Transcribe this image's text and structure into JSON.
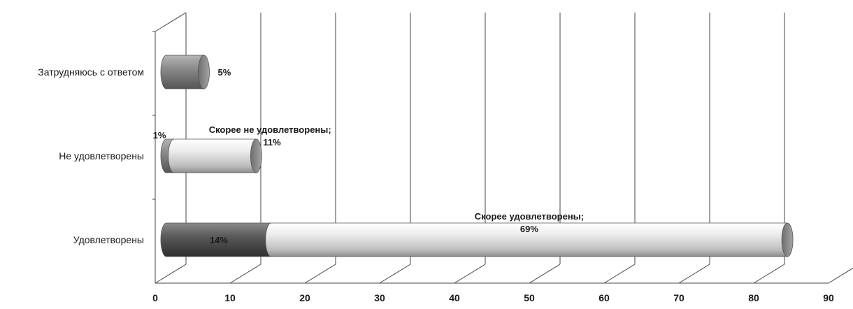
{
  "chart_data": {
    "type": "bar",
    "orientation": "horizontal",
    "stacked": true,
    "style": "3d-cylinder",
    "xlim": [
      0,
      90
    ],
    "x_ticks": [
      "0",
      "10",
      "20",
      "30",
      "40",
      "50",
      "60",
      "70",
      "80",
      "90"
    ],
    "grid": true,
    "categories": [
      "Удовлетворены",
      "Не удовлетворены",
      "Затрудняюсь с ответом"
    ],
    "series": [
      {
        "color": "#5a5a5a",
        "values": [
          14,
          1,
          5
        ]
      },
      {
        "color": "#dcdcdc",
        "values": [
          69,
          11,
          null
        ]
      }
    ],
    "data_labels": [
      {
        "category": 0,
        "series": 0,
        "lines": [
          "14%"
        ]
      },
      {
        "category": 0,
        "series": 1,
        "lines": [
          "Скорее удовлетворены;",
          "69%"
        ]
      },
      {
        "category": 1,
        "series": 0,
        "lines": [
          "1%"
        ]
      },
      {
        "category": 1,
        "series": 1,
        "lines": [
          "Скорее не удовлетворены;",
          "11%"
        ]
      },
      {
        "category": 2,
        "series": 0,
        "lines": [
          "5%"
        ]
      }
    ]
  }
}
